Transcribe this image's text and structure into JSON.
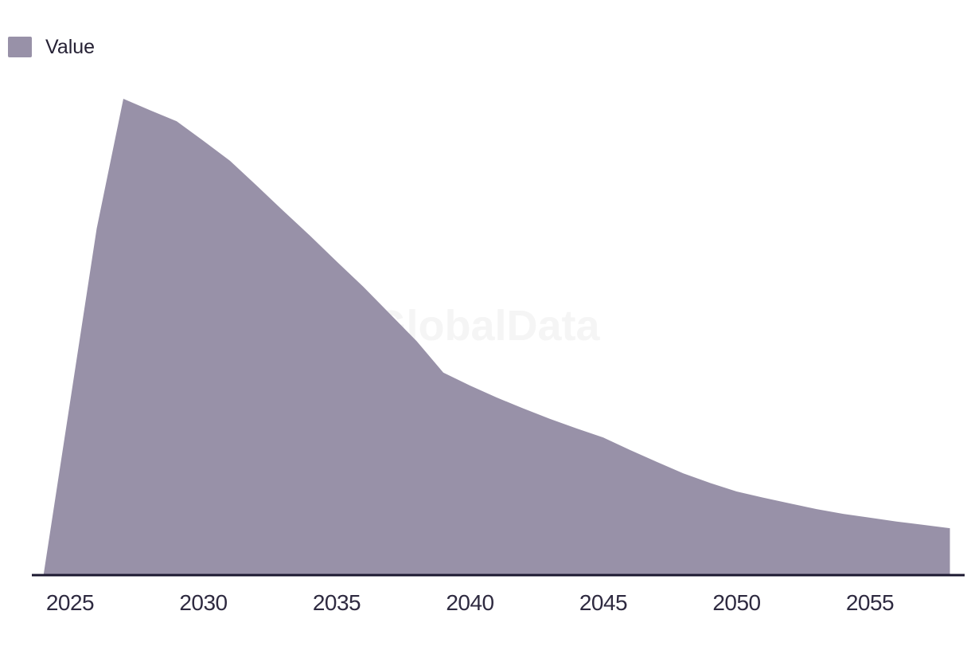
{
  "legend": {
    "label": "Value"
  },
  "watermark": "GlobalData",
  "colors": {
    "series_fill": "#9891A8",
    "axis_line": "#1B1830",
    "tick_text": "#2E2A40",
    "legend_text": "#262235",
    "watermark_text": "#F5F5F5",
    "background": "#FFFFFF"
  },
  "chart_data": {
    "type": "area",
    "title": "",
    "legend_entries": [
      "Value"
    ],
    "legend_position": "top-left",
    "grid": false,
    "y_axis_visible": false,
    "values_note": "no y-axis shown in image; values estimated from pixel heights, normalized so 2027 peak = 100",
    "xlim": [
      2024,
      2058
    ],
    "ylim": [
      0,
      100
    ],
    "x_ticks": [
      2025,
      2030,
      2035,
      2040,
      2045,
      2050,
      2055
    ],
    "x_tick_labels": [
      "2025",
      "2030",
      "2035",
      "2040",
      "2045",
      "2050",
      "2055"
    ],
    "x": [
      2024,
      2025,
      2026,
      2027,
      2028,
      2029,
      2030,
      2031,
      2032,
      2033,
      2034,
      2035,
      2036,
      2037,
      2038,
      2039,
      2040,
      2041,
      2042,
      2043,
      2044,
      2045,
      2046,
      2047,
      2048,
      2049,
      2050,
      2051,
      2052,
      2053,
      2054,
      2055,
      2056,
      2057,
      2058
    ],
    "series": [
      {
        "name": "Value",
        "values": [
          0,
          36.4,
          72.8,
          100,
          97.6,
          95.3,
          91.2,
          87.0,
          81.8,
          76.5,
          71.3,
          65.9,
          60.6,
          54.9,
          49.2,
          42.6,
          39.9,
          37.4,
          35.1,
          32.9,
          30.9,
          29.0,
          26.4,
          23.9,
          21.5,
          19.5,
          17.7,
          16.4,
          15.2,
          14.0,
          13.0,
          12.2,
          11.4,
          10.7,
          10.0
        ]
      }
    ]
  }
}
